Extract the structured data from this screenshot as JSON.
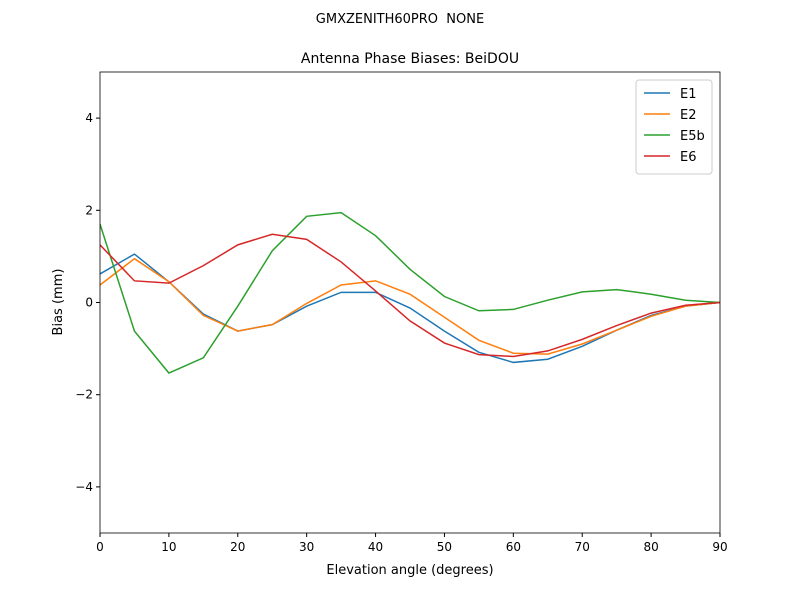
{
  "chart_data": {
    "type": "line",
    "suptitle": "GMXZENITH60PRO  NONE",
    "title": "Antenna Phase Biases: BeiDOU",
    "xlabel": "Elevation angle (degrees)",
    "ylabel": "Bias (mm)",
    "x": [
      0,
      5,
      10,
      15,
      20,
      25,
      30,
      35,
      40,
      45,
      50,
      55,
      60,
      65,
      70,
      75,
      80,
      85,
      90
    ],
    "series": [
      {
        "name": "E1",
        "color": "#1f77b4",
        "values": [
          0.62,
          1.05,
          0.45,
          -0.25,
          -0.62,
          -0.48,
          -0.08,
          0.22,
          0.22,
          -0.12,
          -0.62,
          -1.08,
          -1.3,
          -1.23,
          -0.95,
          -0.6,
          -0.28,
          -0.08,
          0
        ]
      },
      {
        "name": "E2",
        "color": "#ff7f0e",
        "values": [
          0.38,
          0.95,
          0.45,
          -0.28,
          -0.62,
          -0.48,
          -0.02,
          0.38,
          0.47,
          0.18,
          -0.32,
          -0.82,
          -1.1,
          -1.12,
          -0.9,
          -0.6,
          -0.3,
          -0.08,
          0
        ]
      },
      {
        "name": "E5b",
        "color": "#2ca02c",
        "values": [
          1.7,
          -0.62,
          -1.53,
          -1.2,
          -0.08,
          1.12,
          1.87,
          1.95,
          1.45,
          0.72,
          0.13,
          -0.18,
          -0.15,
          0.05,
          0.23,
          0.28,
          0.18,
          0.05,
          0
        ]
      },
      {
        "name": "E6",
        "color": "#d62728",
        "values": [
          1.25,
          0.47,
          0.42,
          0.8,
          1.25,
          1.48,
          1.37,
          0.88,
          0.25,
          -0.4,
          -0.88,
          -1.13,
          -1.17,
          -1.05,
          -0.8,
          -0.5,
          -0.23,
          -0.06,
          0
        ]
      }
    ],
    "xlim": [
      0,
      90
    ],
    "xticks": [
      0,
      10,
      20,
      30,
      40,
      50,
      60,
      70,
      80,
      90
    ],
    "ylim": [
      -5,
      5
    ],
    "yticks": [
      {
        "value": -4,
        "label": "−4"
      },
      {
        "value": -2,
        "label": "−2"
      },
      0,
      2,
      4
    ],
    "legend": "upper right"
  }
}
